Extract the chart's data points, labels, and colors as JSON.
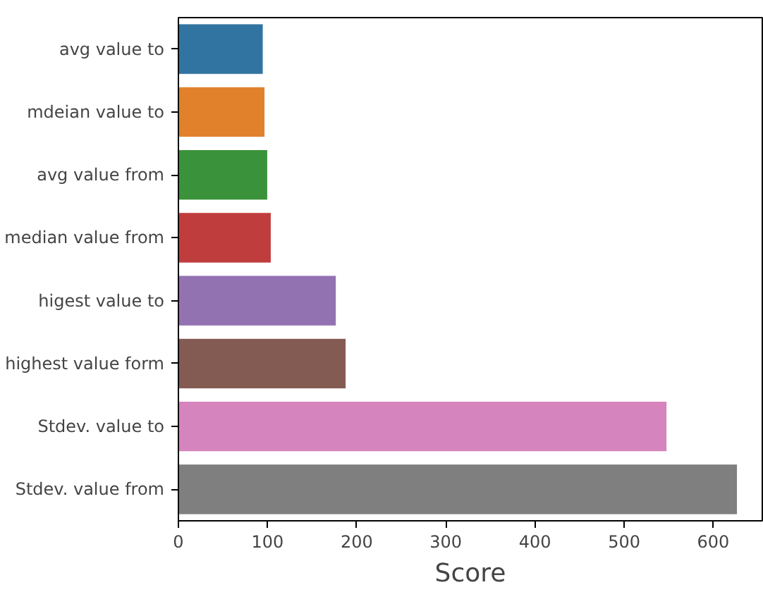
{
  "chart_data": {
    "type": "bar",
    "orientation": "horizontal",
    "xlabel": "Score",
    "categories": [
      "avg value to",
      "mdeian value to",
      "avg value from",
      "median value from",
      "higest value to",
      "highest value form",
      "Stdev. value to",
      "Stdev. value from"
    ],
    "values": [
      95,
      97,
      100,
      104,
      177,
      188,
      548,
      627
    ],
    "colors": [
      "#3274a1",
      "#e1812c",
      "#3a923a",
      "#c03d3e",
      "#9372b2",
      "#845b53",
      "#d684bd",
      "#7f7f7f"
    ],
    "xlim": [
      0,
      655
    ],
    "xticks": [
      0,
      100,
      200,
      300,
      400,
      500,
      600
    ],
    "grid": false
  }
}
